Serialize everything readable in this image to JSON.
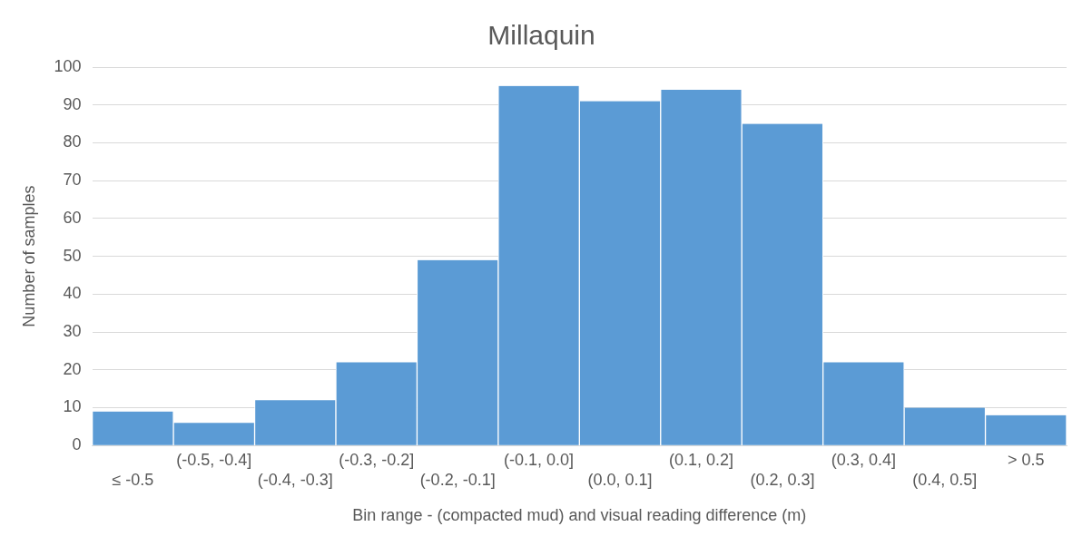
{
  "chart_data": {
    "type": "bar",
    "title": "Millaquin",
    "xlabel": "Bin range - (compacted mud) and visual reading difference (m)",
    "ylabel": "Number of samples",
    "categories": [
      "≤ -0.5",
      "(-0.5, -0.4]",
      "(-0.4, -0.3]",
      "(-0.3, -0.2]",
      "(-0.2, -0.1]",
      "(-0.1, 0.0]",
      "(0.0, 0.1]",
      "(0.1, 0.2]",
      "(0.2, 0.3]",
      "(0.3, 0.4]",
      "(0.4, 0.5]",
      "> 0.5"
    ],
    "values": [
      9,
      6,
      12,
      22,
      49,
      95,
      91,
      94,
      85,
      22,
      10,
      8
    ],
    "color": "#5b9bd5",
    "ylim": [
      0,
      100
    ],
    "yticks": [
      0,
      10,
      20,
      30,
      40,
      50,
      60,
      70,
      80,
      90,
      100
    ],
    "grid": "y",
    "legend": false
  }
}
